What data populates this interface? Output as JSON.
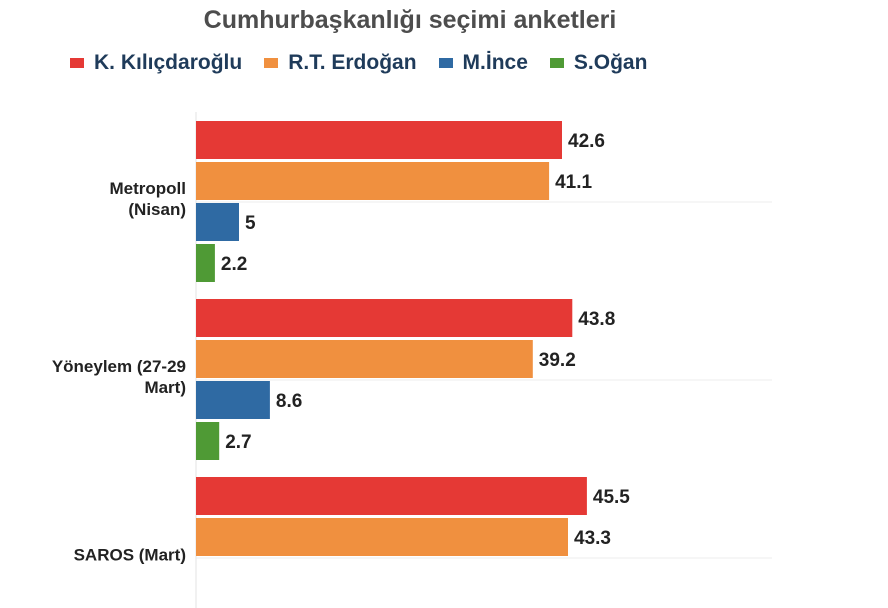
{
  "chart_data": {
    "type": "bar",
    "orientation": "horizontal",
    "title": "Cumhurbaşkanlığı seçimi anketleri",
    "grid": false,
    "legend_position": "top",
    "groups": [
      {
        "label_lines": [
          "Metropoll",
          "(Nisan)"
        ]
      },
      {
        "label_lines": [
          "Yöneylem (27-29",
          "Mart)"
        ]
      },
      {
        "label_lines": [
          "SAROS (Mart)"
        ]
      }
    ],
    "series": [
      {
        "name": "K. Kılıçdaroğlu",
        "color": "#e53935",
        "values": [
          42.6,
          43.8,
          45.5
        ]
      },
      {
        "name": "R.T. Erdoğan",
        "color": "#f0903f",
        "values": [
          41.1,
          39.2,
          43.3
        ]
      },
      {
        "name": "M.İnce",
        "color": "#2f6aa3",
        "values": [
          5,
          8.6,
          null
        ]
      },
      {
        "name": "S.Oğan",
        "color": "#4f9a35",
        "values": [
          2.2,
          2.7,
          null
        ]
      }
    ],
    "xlim": [
      0,
      50
    ]
  }
}
